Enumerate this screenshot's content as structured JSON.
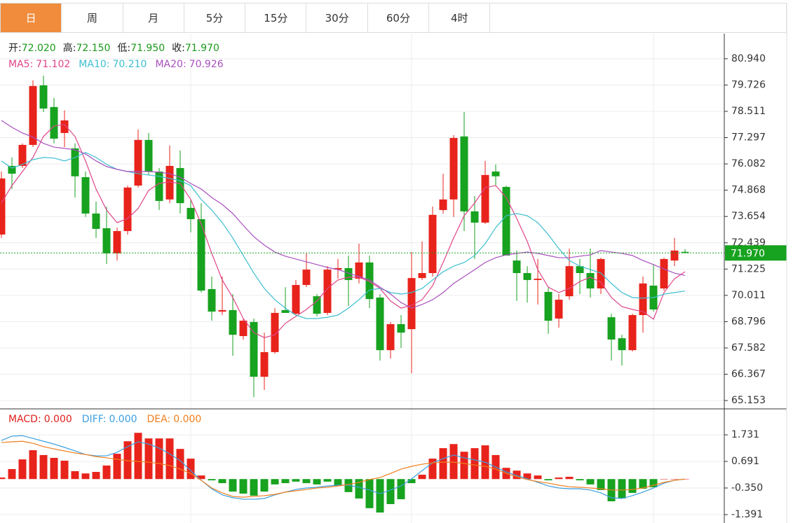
{
  "tabs": [
    "日",
    "周",
    "月",
    "5分",
    "15分",
    "30分",
    "60分",
    "4时"
  ],
  "active_tab": 0,
  "chart_data": [
    {
      "type": "candlestick",
      "quote": [
        {
          "label": "开:",
          "value": "72.020"
        },
        {
          "label": "高:",
          "value": "72.150"
        },
        {
          "label": "低:",
          "value": "71.950"
        },
        {
          "label": "收:",
          "value": "71.970"
        }
      ],
      "quote_color": "#1a9a1a",
      "up_color": "#e8231b",
      "down_color": "#17a21f",
      "open": [
        72.82,
        75.99,
        75.99,
        76.96,
        79.71,
        78.71,
        77.51,
        76.8,
        75.47,
        73.79,
        73.11,
        71.95,
        72.98,
        75.08,
        77.19,
        75.73,
        74.44,
        75.89,
        74.05,
        73.53,
        70.3,
        69.26,
        69.33,
        68.13,
        68.78,
        66.25,
        67.39,
        69.33,
        69.16,
        70.49,
        69.97,
        69.2,
        71.2,
        71.27,
        70.78,
        71.53,
        69.91,
        67.48,
        68.68,
        68.45,
        70.81,
        71.04,
        73.95,
        74.44,
        77.35,
        73.89,
        73.37,
        75.73,
        75.02,
        71.62,
        71.04,
        70.72,
        70.17,
        68.94,
        69.97,
        71.36,
        71.04,
        70.33,
        69.0,
        68.03,
        67.48,
        69.1,
        70.46,
        70.33,
        71.62,
        72.02
      ],
      "high": [
        75.73,
        76.38,
        77.03,
        79.94,
        80.16,
        79.13,
        78.55,
        77.03,
        75.73,
        74.34,
        74.11,
        73.14,
        75.08,
        77.67,
        77.51,
        75.89,
        76.93,
        76.7,
        74.44,
        74.27,
        70.88,
        70.88,
        70.07,
        68.94,
        68.94,
        68.29,
        69.42,
        70.39,
        70.72,
        71.95,
        70.07,
        71.36,
        71.69,
        71.85,
        72.4,
        71.85,
        70.07,
        68.78,
        69.1,
        72.01,
        72.5,
        74.11,
        75.63,
        77.41,
        78.48,
        74.6,
        76.22,
        76.06,
        75.08,
        72.08,
        71.36,
        71.69,
        70.39,
        70.07,
        72.17,
        71.69,
        72.17,
        71.75,
        69.16,
        68.19,
        69.16,
        70.88,
        71.43,
        71.75,
        72.66,
        72.15
      ],
      "low": [
        72.66,
        74.92,
        75.89,
        76.86,
        78.48,
        77.03,
        76.86,
        74.53,
        73.63,
        72.66,
        71.46,
        71.62,
        72.82,
        74.99,
        75.57,
        73.95,
        74.27,
        73.79,
        72.92,
        70.14,
        68.84,
        69.1,
        67.22,
        67.97,
        65.31,
        65.64,
        67.32,
        69.2,
        69.1,
        70.39,
        69.04,
        69.1,
        70.78,
        69.52,
        70.56,
        69.42,
        67.0,
        67.09,
        67.58,
        66.41,
        70.72,
        70.88,
        73.79,
        73.63,
        72.98,
        71.69,
        73.31,
        75.08,
        71.85,
        69.75,
        69.68,
        69.59,
        68.23,
        68.52,
        69.81,
        70.07,
        69.91,
        70.07,
        67.0,
        66.77,
        67.42,
        68.29,
        69.26,
        70.23,
        71.36,
        71.95
      ],
      "close": [
        75.41,
        75.63,
        76.96,
        79.68,
        78.64,
        77.25,
        78.09,
        75.51,
        73.79,
        73.08,
        71.95,
        72.98,
        74.99,
        77.19,
        75.73,
        74.37,
        75.99,
        74.27,
        73.53,
        70.23,
        69.26,
        69.33,
        68.19,
        68.84,
        66.25,
        67.39,
        69.2,
        69.2,
        70.49,
        71.2,
        69.16,
        71.2,
        71.27,
        70.72,
        71.53,
        69.84,
        67.48,
        68.68,
        68.29,
        70.81,
        71.04,
        73.73,
        74.44,
        77.28,
        73.89,
        73.37,
        75.57,
        75.51,
        71.85,
        71.04,
        70.72,
        70.78,
        68.84,
        69.81,
        71.36,
        71.04,
        70.33,
        71.69,
        67.97,
        67.48,
        69.1,
        70.56,
        69.36,
        71.69,
        72.08,
        71.97
      ],
      "series": [
        {
          "name": "MA5:",
          "value_label": "71.102",
          "color": "#e0458a",
          "values": [
            74.28,
            75.08,
            75.73,
            76.38,
            77.35,
            77.83,
            77.9,
            77.35,
            76.22,
            74.92,
            73.95,
            73.37,
            73.56,
            74.02,
            74.86,
            75.18,
            75.25,
            75.18,
            74.44,
            73.31,
            71.95,
            70.72,
            69.91,
            68.94,
            68.29,
            68.06,
            68.19,
            68.72,
            69.04,
            69.36,
            69.75,
            70.33,
            70.72,
            70.85,
            70.85,
            70.65,
            70.33,
            69.75,
            69.42,
            69.55,
            69.81,
            70.46,
            71.53,
            72.66,
            73.69,
            74.28,
            74.99,
            75.08,
            74.53,
            73.56,
            72.5,
            71.2,
            70.39,
            70.14,
            70.33,
            70.65,
            70.85,
            70.62,
            69.91,
            69.49,
            69.36,
            69.26,
            68.91,
            70.14,
            70.78,
            71.1
          ]
        },
        {
          "name": "MA10:",
          "value_label": "70.210",
          "color": "#3cbfd0",
          "values": [
            76.22,
            75.89,
            76.06,
            76.28,
            76.38,
            76.35,
            76.22,
            76.38,
            76.61,
            76.38,
            76.06,
            75.83,
            75.73,
            75.63,
            75.57,
            75.51,
            75.41,
            75.31,
            75.08,
            74.44,
            73.95,
            73.37,
            72.66,
            71.85,
            71.04,
            70.33,
            69.81,
            69.42,
            69.1,
            68.94,
            68.94,
            69.0,
            69.1,
            69.42,
            69.81,
            70.26,
            70.33,
            70.14,
            70.07,
            70.14,
            70.33,
            70.72,
            71.1,
            71.36,
            71.53,
            71.85,
            72.4,
            73.14,
            73.69,
            73.79,
            73.69,
            73.37,
            72.82,
            72.17,
            71.62,
            71.36,
            71.2,
            71.04,
            70.56,
            70.14,
            69.91,
            69.88,
            69.91,
            70.07,
            70.14,
            70.21
          ]
        },
        {
          "name": "MA20:",
          "value_label": "70.926",
          "color": "#a950bf",
          "values": [
            78.09,
            77.77,
            77.51,
            77.32,
            77.03,
            76.86,
            76.8,
            76.73,
            76.54,
            76.22,
            75.96,
            75.83,
            75.73,
            75.73,
            75.73,
            75.7,
            75.63,
            75.47,
            75.18,
            74.92,
            74.53,
            74.21,
            73.79,
            73.24,
            72.72,
            72.33,
            72.01,
            71.82,
            71.69,
            71.56,
            71.43,
            71.3,
            71.2,
            71.04,
            70.88,
            70.72,
            70.39,
            70.07,
            69.68,
            69.42,
            69.59,
            69.81,
            70.14,
            70.56,
            70.88,
            71.2,
            71.53,
            71.75,
            71.88,
            71.95,
            72.01,
            71.95,
            71.85,
            71.75,
            71.75,
            71.82,
            71.88,
            72.08,
            72.01,
            71.95,
            71.85,
            71.62,
            71.43,
            71.23,
            71.04,
            70.93
          ]
        }
      ],
      "last_price": {
        "value": 71.97,
        "label": "71.970"
      },
      "last_color": "#17a21f",
      "ylim": [
        64.8,
        82.1
      ],
      "yticks": [
        {
          "value": 80.94,
          "label": "80.940"
        },
        {
          "value": 79.726,
          "label": "79.726"
        },
        {
          "value": 78.511,
          "label": "78.511"
        },
        {
          "value": 77.297,
          "label": "77.297"
        },
        {
          "value": 76.082,
          "label": "76.082"
        },
        {
          "value": 74.868,
          "label": "74.868"
        },
        {
          "value": 73.654,
          "label": "73.654"
        },
        {
          "value": 72.439,
          "label": "72.439"
        },
        {
          "value": 71.225,
          "label": "71.225"
        },
        {
          "value": 70.011,
          "label": "70.011"
        },
        {
          "value": 68.796,
          "label": "68.796"
        },
        {
          "value": 67.582,
          "label": "67.582"
        },
        {
          "value": 66.367,
          "label": "66.367"
        },
        {
          "value": 65.153,
          "label": "65.153"
        }
      ],
      "grid": true
    },
    {
      "type": "macd",
      "up_color": "#e8231b",
      "down_color": "#17a21f",
      "series": [
        {
          "name": "MACD:",
          "value_label": "0.000",
          "color": "#e0201c",
          "style": "bar",
          "values": [
            0.06,
            0.39,
            0.77,
            1.13,
            0.94,
            0.83,
            0.72,
            0.31,
            0.22,
            0.28,
            0.53,
            0.99,
            1.48,
            1.81,
            1.59,
            1.59,
            1.59,
            1.18,
            0.8,
            0.14,
            -0.05,
            -0.16,
            -0.49,
            -0.57,
            -0.65,
            -0.49,
            -0.21,
            -0.16,
            -0.1,
            -0.16,
            -0.21,
            -0.1,
            -0.27,
            -0.51,
            -0.76,
            -1.14,
            -1.31,
            -0.98,
            -0.79,
            -0.16,
            0.17,
            0.8,
            1.21,
            1.37,
            1.07,
            1.21,
            1.32,
            0.94,
            0.44,
            0.33,
            0.22,
            0.14,
            -0.05,
            0.06,
            0.09,
            -0.05,
            -0.21,
            -0.43,
            -0.87,
            -0.76,
            -0.54,
            -0.38,
            -0.32,
            0,
            0,
            0
          ]
        },
        {
          "name": "DIFF:",
          "value_label": "0.000",
          "color": "#3a9fe0",
          "style": "line",
          "values": [
            1.51,
            1.68,
            1.7,
            1.59,
            1.48,
            1.37,
            1.24,
            1.1,
            0.96,
            0.91,
            0.91,
            1.05,
            1.27,
            1.46,
            1.37,
            1.21,
            0.99,
            0.72,
            0.33,
            -0.05,
            -0.38,
            -0.62,
            -0.73,
            -0.79,
            -0.79,
            -0.76,
            -0.62,
            -0.51,
            -0.41,
            -0.35,
            -0.32,
            -0.27,
            -0.24,
            -0.24,
            -0.32,
            -0.43,
            -0.57,
            -0.43,
            -0.27,
            0.01,
            0.33,
            0.64,
            0.8,
            0.94,
            0.83,
            0.75,
            0.66,
            0.47,
            0.28,
            0.14,
            0.01,
            -0.13,
            -0.27,
            -0.35,
            -0.38,
            -0.38,
            -0.43,
            -0.54,
            -0.73,
            -0.76,
            -0.65,
            -0.51,
            -0.35,
            -0.16,
            -0.05,
            0
          ]
        },
        {
          "name": "DEA:",
          "value_label": "0.000",
          "color": "#ef7f1e",
          "style": "line",
          "values": [
            1.43,
            1.46,
            1.48,
            1.4,
            1.27,
            1.18,
            1.1,
            1.02,
            0.96,
            0.88,
            0.83,
            0.77,
            0.72,
            0.69,
            0.66,
            0.61,
            0.53,
            0.39,
            0.22,
            -0.05,
            -0.35,
            -0.54,
            -0.68,
            -0.71,
            -0.68,
            -0.65,
            -0.6,
            -0.51,
            -0.46,
            -0.41,
            -0.35,
            -0.32,
            -0.27,
            -0.21,
            -0.13,
            -0.02,
            0.06,
            0.22,
            0.39,
            0.5,
            0.58,
            0.64,
            0.66,
            0.66,
            0.61,
            0.55,
            0.5,
            0.39,
            0.22,
            0.09,
            -0.02,
            -0.1,
            -0.16,
            -0.24,
            -0.3,
            -0.32,
            -0.35,
            -0.38,
            -0.43,
            -0.43,
            -0.41,
            -0.35,
            -0.24,
            -0.13,
            -0.05,
            0
          ]
        }
      ],
      "ylim": [
        -1.72,
        2.72
      ],
      "yticks": [
        {
          "value": 1.731,
          "label": "1.731"
        },
        {
          "value": 0.691,
          "label": "0.691"
        },
        {
          "value": -0.35,
          "label": "-0.350"
        },
        {
          "value": -1.391,
          "label": "-1.391"
        }
      ],
      "grid": true
    }
  ]
}
